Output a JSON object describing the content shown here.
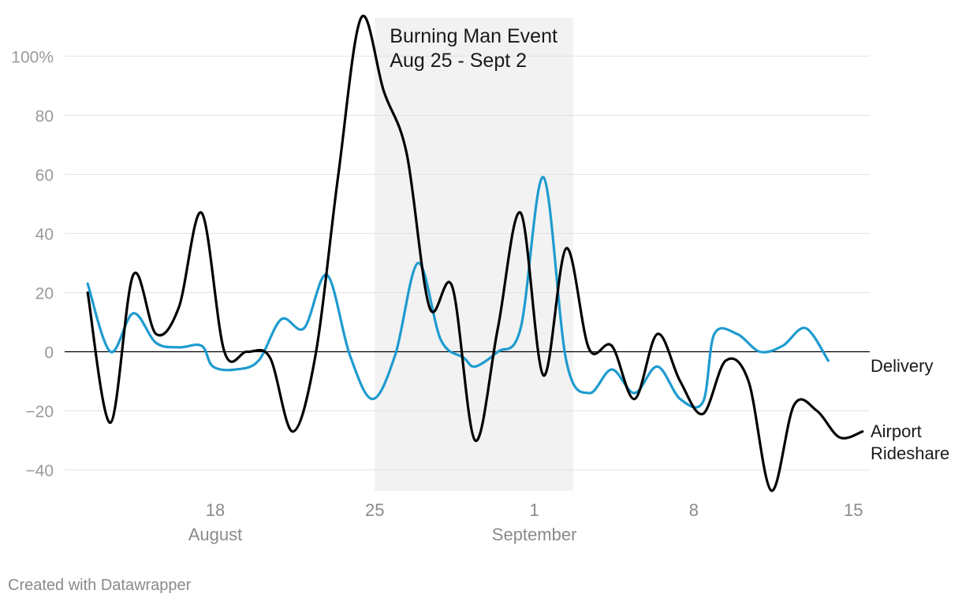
{
  "chart_data": {
    "type": "line",
    "title": "",
    "xlabel": "",
    "ylabel": "",
    "ylim": [
      -47,
      113
    ],
    "y_ticks": [
      {
        "value": 100,
        "label": "100%"
      },
      {
        "value": 80,
        "label": "80"
      },
      {
        "value": 60,
        "label": "60"
      },
      {
        "value": 40,
        "label": "40"
      },
      {
        "value": 20,
        "label": "20"
      },
      {
        "value": 0,
        "label": "0"
      },
      {
        "value": -20,
        "label": "−20"
      },
      {
        "value": -40,
        "label": "−40"
      }
    ],
    "x_ticks": [
      {
        "day": 18,
        "label": "18",
        "month": "August"
      },
      {
        "day": 25,
        "label": "25"
      },
      {
        "day": 32,
        "label": "1",
        "month": "September"
      },
      {
        "day": 39,
        "label": "8"
      },
      {
        "day": 46,
        "label": "15"
      }
    ],
    "x_range": [
      12,
      46
    ],
    "highlight": {
      "start_day": 25,
      "end_day": 33.7,
      "lines": [
        "Burning Man Event",
        "Aug 25 - Sept 2"
      ]
    },
    "series": [
      {
        "name": "Delivery",
        "color": "#1e9bcf",
        "label_lines": [
          "Delivery"
        ],
        "points": [
          [
            12.4,
            23
          ],
          [
            13.4,
            0
          ],
          [
            14.4,
            13
          ],
          [
            15.4,
            3
          ],
          [
            16.4,
            1.5
          ],
          [
            17.4,
            2
          ],
          [
            17.9,
            -5
          ],
          [
            18.9,
            -6
          ],
          [
            19.9,
            -3
          ],
          [
            20.9,
            11
          ],
          [
            21.9,
            8
          ],
          [
            22.9,
            26
          ],
          [
            23.9,
            -1
          ],
          [
            24.9,
            -16
          ],
          [
            25.9,
            -1
          ],
          [
            26.9,
            30
          ],
          [
            27.9,
            4
          ],
          [
            28.9,
            -2
          ],
          [
            29.4,
            -5
          ],
          [
            30.4,
            0
          ],
          [
            31.4,
            8
          ],
          [
            32.4,
            59
          ],
          [
            33.4,
            -3
          ],
          [
            34.4,
            -14
          ],
          [
            35.4,
            -6
          ],
          [
            36.4,
            -14
          ],
          [
            37.4,
            -5
          ],
          [
            38.4,
            -16
          ],
          [
            39.4,
            -17
          ],
          [
            39.9,
            6
          ],
          [
            40.9,
            6
          ],
          [
            41.9,
            0
          ],
          [
            42.9,
            2
          ],
          [
            43.9,
            8
          ],
          [
            44.9,
            -3
          ]
        ]
      },
      {
        "name": "Airport Rideshare",
        "color": "#000000",
        "label_lines": [
          "Airport",
          "Rideshare"
        ],
        "points": [
          [
            12.4,
            20
          ],
          [
            13.4,
            -24
          ],
          [
            14.4,
            26
          ],
          [
            15.4,
            6
          ],
          [
            16.4,
            15
          ],
          [
            17.4,
            47
          ],
          [
            18.4,
            0
          ],
          [
            19.4,
            0
          ],
          [
            20.4,
            -2
          ],
          [
            21.4,
            -27
          ],
          [
            22.4,
            -1
          ],
          [
            23.4,
            60
          ],
          [
            24.4,
            113
          ],
          [
            25.4,
            88
          ],
          [
            26.4,
            67
          ],
          [
            27.4,
            15
          ],
          [
            28.4,
            22
          ],
          [
            29.4,
            -30
          ],
          [
            30.4,
            8
          ],
          [
            31.4,
            47
          ],
          [
            32.4,
            -8
          ],
          [
            33.4,
            35
          ],
          [
            34.4,
            1
          ],
          [
            35.4,
            2
          ],
          [
            36.4,
            -16
          ],
          [
            37.4,
            6
          ],
          [
            38.4,
            -10
          ],
          [
            39.4,
            -21
          ],
          [
            40.4,
            -3
          ],
          [
            41.4,
            -10
          ],
          [
            42.4,
            -47
          ],
          [
            43.4,
            -18
          ],
          [
            44.4,
            -20
          ],
          [
            45.4,
            -29
          ],
          [
            46.4,
            -27
          ]
        ]
      }
    ]
  },
  "credit": "Created with Datawrapper"
}
